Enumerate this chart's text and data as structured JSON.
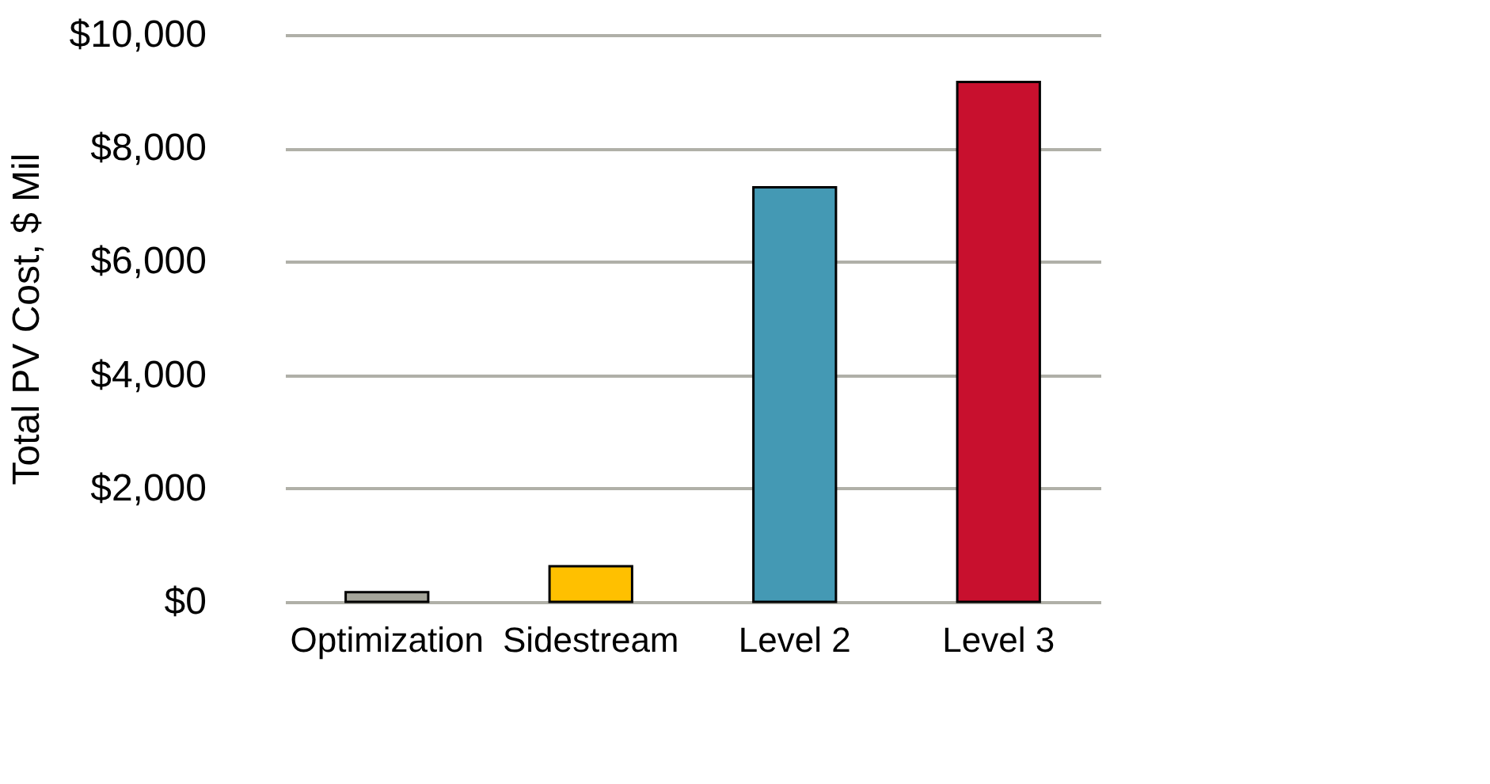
{
  "chart_data": {
    "type": "bar",
    "ylabel": "Total PV Cost, $ Mil",
    "categories": [
      "Optimization",
      "Sidestream",
      "Level 2",
      "Level 3"
    ],
    "values": [
      170,
      630,
      7310,
      9170
    ],
    "colors": [
      "#a5a59a",
      "#ffc000",
      "#4499b4",
      "#c8102e"
    ],
    "ylim": [
      0,
      10000
    ],
    "yticks": [
      {
        "value": 0,
        "label": "$0"
      },
      {
        "value": 2000,
        "label": "$2,000"
      },
      {
        "value": 4000,
        "label": "$4,000"
      },
      {
        "value": 6000,
        "label": "$6,000"
      },
      {
        "value": 8000,
        "label": "$8,000"
      },
      {
        "value": 10000,
        "label": "$10,000"
      }
    ],
    "grid": "y"
  }
}
